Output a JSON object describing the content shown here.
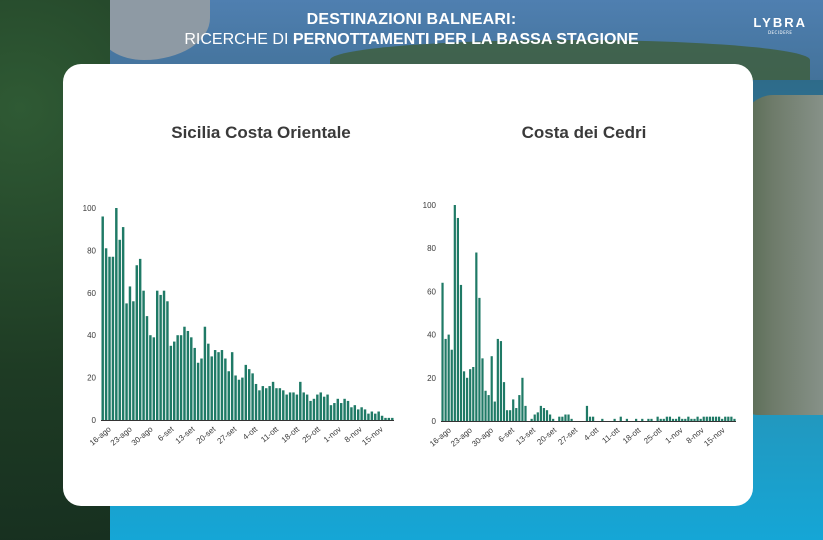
{
  "header": {
    "title": "DESTINAZIONI BALNEARI:",
    "subtitle_prefix": "RICERCHE DI ",
    "subtitle_bold": "PERNOTTAMENTI PER LA BASSA STAGIONE"
  },
  "logo": {
    "name": "LYBRA",
    "tagline": "DECIDERE"
  },
  "colors": {
    "bar": "#1f7a66",
    "axis": "#333333",
    "text": "#3a3a3a"
  },
  "chart_data": [
    {
      "type": "bar",
      "title": "Sicilia Costa Orientale",
      "ylim": [
        0,
        100
      ],
      "yticks": [
        0,
        20,
        40,
        60,
        80,
        100
      ],
      "xtick_labels": [
        "16-ago",
        "23-ago",
        "30-ago",
        "6-set",
        "13-set",
        "20-set",
        "27-set",
        "4-ott",
        "11-ott",
        "18-ott",
        "25-ott",
        "1-nov",
        "8-nov",
        "15-nov"
      ],
      "values": [
        96,
        81,
        77,
        77,
        100,
        85,
        91,
        55,
        63,
        56,
        73,
        76,
        61,
        49,
        40,
        39,
        61,
        59,
        61,
        56,
        35,
        37,
        40,
        40,
        44,
        42,
        39,
        34,
        27,
        29,
        44,
        36,
        30,
        33,
        32,
        33,
        29,
        23,
        32,
        21,
        19,
        20,
        26,
        24,
        22,
        17,
        14,
        16,
        15,
        16,
        18,
        15,
        15,
        14,
        12,
        13,
        13,
        12,
        18,
        13,
        12,
        9,
        10,
        12,
        13,
        11,
        12,
        7,
        8,
        10,
        8,
        10,
        9,
        6,
        7,
        5,
        6,
        5,
        3,
        4,
        3,
        4,
        2,
        1,
        1,
        1
      ],
      "xlabel": "",
      "ylabel": ""
    },
    {
      "type": "bar",
      "title": "Costa dei Cedri",
      "ylim": [
        0,
        100
      ],
      "yticks": [
        0,
        20,
        40,
        60,
        80,
        100
      ],
      "xtick_labels": [
        "16-ago",
        "23-ago",
        "30-ago",
        "6-set",
        "13-set",
        "20-set",
        "27-set",
        "4-ott",
        "11-ott",
        "18-ott",
        "25-ott",
        "1-nov",
        "8-nov",
        "15-nov"
      ],
      "values": [
        64,
        38,
        40,
        33,
        100,
        94,
        63,
        23,
        20,
        24,
        25,
        78,
        57,
        29,
        14,
        12,
        30,
        9,
        38,
        37,
        18,
        5,
        5,
        10,
        6,
        12,
        20,
        7,
        0,
        1,
        3,
        4,
        7,
        6,
        5,
        3,
        1,
        0,
        2,
        2,
        3,
        3,
        1,
        0,
        0,
        0,
        0,
        7,
        2,
        2,
        0,
        0,
        1,
        0,
        0,
        0,
        1,
        0,
        2,
        0,
        1,
        0,
        0,
        1,
        0,
        1,
        0,
        1,
        1,
        0,
        2,
        1,
        1,
        2,
        2,
        1,
        1,
        2,
        1,
        1,
        2,
        1,
        1,
        2,
        1,
        2,
        2,
        2,
        2,
        2,
        2,
        1,
        2,
        2,
        2,
        1
      ],
      "xlabel": "",
      "ylabel": ""
    }
  ]
}
